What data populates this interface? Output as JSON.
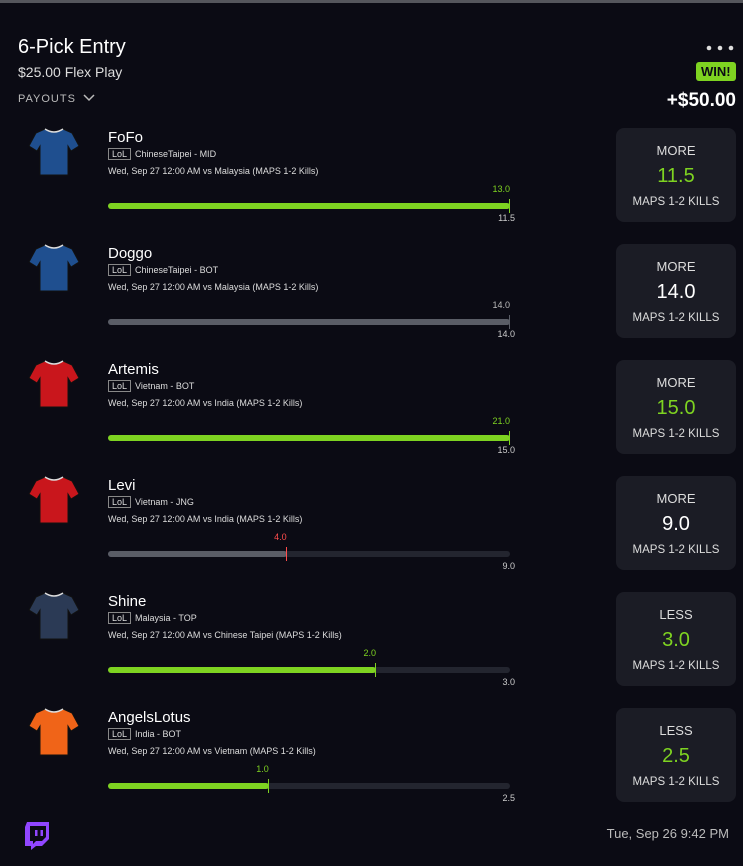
{
  "header": {
    "title": "6-Pick Entry",
    "subtitle": "$25.00 Flex Play",
    "payouts": "PAYOUTS",
    "badge": "WIN!",
    "amount": "+$50.00"
  },
  "picks": [
    {
      "name": "FoFo",
      "league": "LoL",
      "team": "ChineseTaipei - MID",
      "match": "Wed, Sep 27 12:00 AM  vs Malaysia (MAPS 1-2 Kills)",
      "actual": "13.0",
      "line": "11.5",
      "direction": "MORE",
      "stat_value": "11.5",
      "stat_label": "MAPS 1-2 KILLS",
      "bar_color": "#7ed321",
      "value_color": "#7ed321",
      "jersey_color": "#1f4f8f"
    },
    {
      "name": "Doggo",
      "league": "LoL",
      "team": "ChineseTaipei - BOT",
      "match": "Wed, Sep 27 12:00 AM  vs Malaysia (MAPS 1-2 Kills)",
      "actual": "14.0",
      "line": "14.0",
      "direction": "MORE",
      "stat_value": "14.0",
      "stat_label": "MAPS 1-2 KILLS",
      "bar_color": "#5a5d66",
      "value_color": "#ffffff",
      "jersey_color": "#1f4f8f"
    },
    {
      "name": "Artemis",
      "league": "LoL",
      "team": "Vietnam - BOT",
      "match": "Wed, Sep 27 12:00 AM  vs India (MAPS 1-2 Kills)",
      "actual": "21.0",
      "line": "15.0",
      "direction": "MORE",
      "stat_value": "15.0",
      "stat_label": "MAPS 1-2 KILLS",
      "bar_color": "#7ed321",
      "value_color": "#7ed321",
      "jersey_color": "#c9161c"
    },
    {
      "name": "Levi",
      "league": "LoL",
      "team": "Vietnam - JNG",
      "match": "Wed, Sep 27 12:00 AM  vs India (MAPS 1-2 Kills)",
      "actual": "4.0",
      "line": "9.0",
      "direction": "MORE",
      "stat_value": "9.0",
      "stat_label": "MAPS 1-2 KILLS",
      "bar_color": "#5a5d66",
      "value_color": "#ffffff",
      "jersey_color": "#c9161c"
    },
    {
      "name": "Shine",
      "league": "LoL",
      "team": "Malaysia - TOP",
      "match": "Wed, Sep 27 12:00 AM  vs Chinese Taipei (MAPS 1-2 Kills)",
      "actual": "2.0",
      "line": "3.0",
      "direction": "LESS",
      "stat_value": "3.0",
      "stat_label": "MAPS 1-2 KILLS",
      "bar_color": "#7ed321",
      "value_color": "#7ed321",
      "jersey_color": "#2b3a55"
    },
    {
      "name": "AngelsLotus",
      "league": "LoL",
      "team": "India - BOT",
      "match": "Wed, Sep 27 12:00 AM  vs Vietnam (MAPS 1-2 Kills)",
      "actual": "1.0",
      "line": "2.5",
      "direction": "LESS",
      "stat_value": "2.5",
      "stat_label": "MAPS 1-2 KILLS",
      "bar_color": "#7ed321",
      "value_color": "#7ed321",
      "jersey_color": "#f06418"
    }
  ],
  "footer": {
    "timestamp": "Tue, Sep 26 9:42 PM"
  }
}
